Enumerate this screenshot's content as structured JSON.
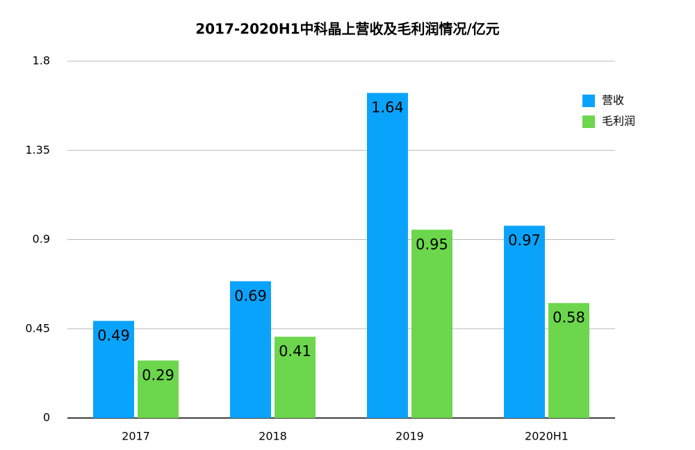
{
  "chart_data": {
    "type": "bar",
    "title": "2017-2020H1中科晶上营收及毛利润情况/亿元",
    "categories": [
      "2017",
      "2018",
      "2019",
      "2020H1"
    ],
    "series": [
      {
        "name": "营收",
        "color": "#0aa3fb",
        "values": [
          0.49,
          0.69,
          1.64,
          0.97
        ]
      },
      {
        "name": "毛利润",
        "color": "#6cd64c",
        "values": [
          0.29,
          0.41,
          0.95,
          0.58
        ]
      }
    ],
    "ylim": [
      0,
      1.8
    ],
    "yticks": [
      0,
      0.45,
      0.9,
      1.35,
      1.8
    ],
    "grid": true,
    "legend": "upper-right"
  }
}
